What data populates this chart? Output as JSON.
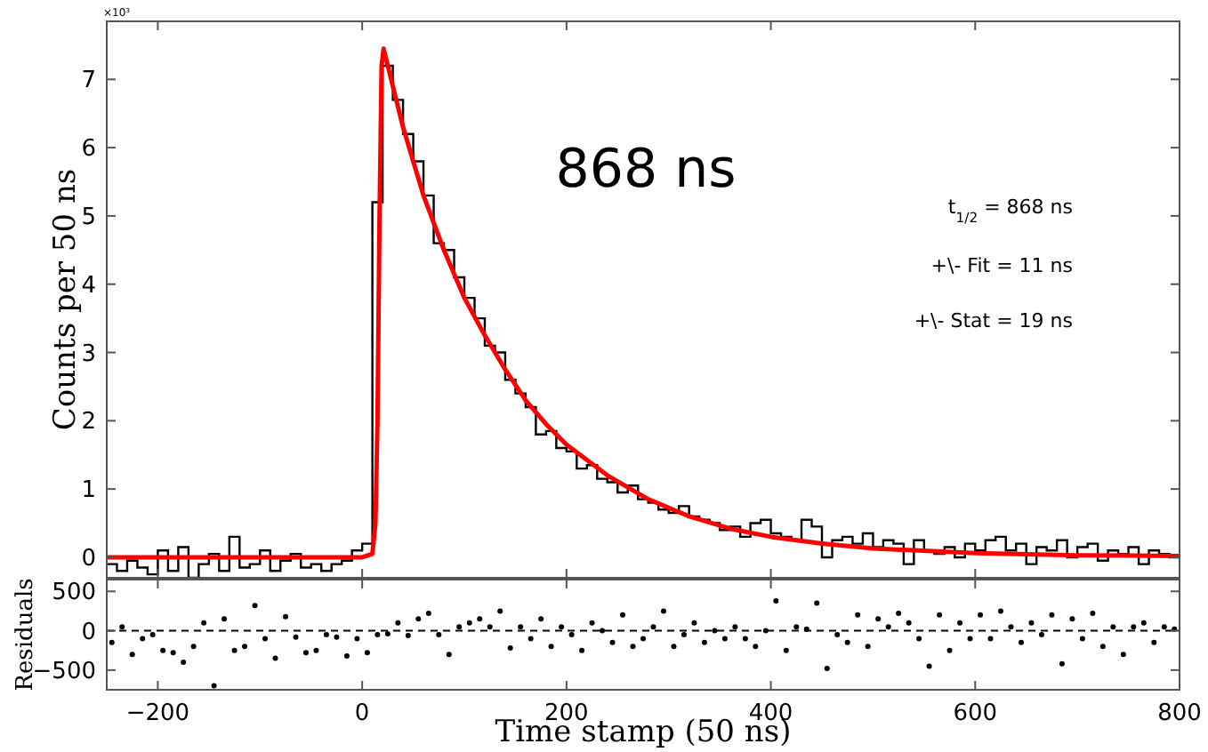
{
  "chart_data": [
    {
      "type": "histogram",
      "ylabel": "Counts per 50 ns",
      "xlim": [
        -250,
        800
      ],
      "xticks": [
        -200,
        0,
        200,
        400,
        600,
        800
      ],
      "ylim": [
        -0.3,
        7.85
      ],
      "yticks": [
        0,
        1,
        2,
        3,
        4,
        5,
        6,
        7
      ],
      "tick_labels": "y",
      "annotations": [
        "×10³",
        "868 ns",
        "t$_{1/2}$ = 868 ns",
        "+\\- Fit = 11 ns",
        "+\\- Stat = 19 ns"
      ],
      "bins": [
        -250,
        -240,
        -230,
        -220,
        -210,
        -200,
        -190,
        -180,
        -170,
        -160,
        -150,
        -140,
        -130,
        -120,
        -110,
        -100,
        -90,
        -80,
        -70,
        -60,
        -50,
        -40,
        -30,
        -20,
        -10,
        0,
        10,
        20,
        30,
        40,
        50,
        60,
        70,
        80,
        90,
        100,
        110,
        120,
        130,
        140,
        150,
        160,
        170,
        180,
        190,
        200,
        210,
        220,
        230,
        240,
        250,
        260,
        270,
        280,
        290,
        300,
        310,
        320,
        330,
        340,
        350,
        360,
        370,
        380,
        390,
        400,
        410,
        420,
        430,
        440,
        450,
        460,
        470,
        480,
        490,
        500,
        510,
        520,
        530,
        540,
        550,
        560,
        570,
        580,
        590,
        600,
        610,
        620,
        630,
        640,
        650,
        660,
        670,
        680,
        690,
        700,
        710,
        720,
        730,
        740,
        750,
        760,
        770,
        780,
        790,
        800
      ],
      "series": [
        {
          "color": "#000000",
          "values": [
            -0.1,
            -0.2,
            -0.05,
            -0.15,
            -0.25,
            0.1,
            -0.2,
            0.15,
            -0.3,
            -0.1,
            0.05,
            -0.2,
            0.3,
            -0.15,
            -0.1,
            0.1,
            -0.2,
            -0.05,
            0.05,
            -0.15,
            -0.1,
            -0.2,
            -0.1,
            -0.05,
            0.1,
            0.2,
            5.2,
            7.2,
            6.7,
            6.2,
            5.8,
            5.3,
            4.6,
            4.5,
            4.1,
            3.8,
            3.5,
            3.1,
            3.0,
            2.6,
            2.4,
            2.2,
            1.8,
            1.85,
            1.6,
            1.55,
            1.3,
            1.35,
            1.15,
            1.1,
            0.95,
            1.05,
            0.85,
            0.8,
            0.7,
            0.65,
            0.75,
            0.6,
            0.55,
            0.5,
            0.4,
            0.45,
            0.3,
            0.5,
            0.55,
            0.35,
            0.3,
            0.25,
            0.55,
            0.45,
            0.0,
            0.25,
            0.3,
            0.2,
            0.35,
            0.15,
            0.25,
            0.2,
            -0.1,
            0.25,
            0.1,
            0.05,
            0.15,
            0.0,
            0.2,
            0.1,
            0.25,
            0.3,
            0.1,
            0.2,
            -0.1,
            0.15,
            0.1,
            0.25,
            0.0,
            0.15,
            0.2,
            -0.05,
            0.1,
            0.05,
            0.15,
            -0.1,
            0.1,
            0.05,
            0.0
          ]
        },
        {
          "type": "line",
          "color": "#ff0000",
          "x": [
            -250,
            0,
            10,
            13,
            15,
            17,
            19,
            21,
            30,
            40,
            50,
            60,
            80,
            100,
            120,
            140,
            160,
            180,
            200,
            240,
            280,
            320,
            360,
            400,
            450,
            500,
            600,
            700,
            800
          ],
          "values": [
            0,
            0,
            0.05,
            0.5,
            2,
            5,
            7.2,
            7.45,
            6.9,
            6.3,
            5.8,
            5.3,
            4.5,
            3.8,
            3.25,
            2.75,
            2.3,
            1.95,
            1.65,
            1.2,
            0.85,
            0.6,
            0.42,
            0.3,
            0.2,
            0.13,
            0.06,
            0.03,
            0.02
          ]
        }
      ]
    },
    {
      "type": "scatter",
      "ylabel": "Residuals",
      "xlabel": "Time stamp (50 ns)",
      "xlim": [
        -250,
        800
      ],
      "xticks": [
        -200,
        0,
        200,
        400,
        600,
        800
      ],
      "ylim": [
        -750,
        650
      ],
      "yticks": [
        -500,
        0,
        500
      ],
      "marker": "circle",
      "ref_lines": [
        {
          "axis": "y",
          "value": 0,
          "line_style": "dashed",
          "color": "#000000"
        }
      ],
      "series": [
        {
          "color": "#000000",
          "x": [
            -245,
            -235,
            -225,
            -215,
            -205,
            -195,
            -185,
            -175,
            -165,
            -155,
            -145,
            -135,
            -125,
            -115,
            -105,
            -95,
            -85,
            -75,
            -65,
            -55,
            -45,
            -35,
            -25,
            -15,
            -5,
            5,
            15,
            25,
            35,
            45,
            55,
            65,
            75,
            85,
            95,
            105,
            115,
            125,
            135,
            145,
            155,
            165,
            175,
            185,
            195,
            205,
            215,
            225,
            235,
            245,
            255,
            265,
            275,
            285,
            295,
            305,
            315,
            325,
            335,
            345,
            355,
            365,
            375,
            385,
            395,
            405,
            415,
            425,
            435,
            445,
            455,
            465,
            475,
            485,
            495,
            505,
            515,
            525,
            535,
            545,
            555,
            565,
            575,
            585,
            595,
            605,
            615,
            625,
            635,
            645,
            655,
            665,
            675,
            685,
            695,
            705,
            715,
            725,
            735,
            745,
            755,
            765,
            775,
            785,
            795
          ],
          "values": [
            -150,
            50,
            -300,
            -100,
            -50,
            -250,
            -280,
            -400,
            -200,
            100,
            -700,
            150,
            -250,
            -200,
            320,
            -100,
            -350,
            180,
            -80,
            -280,
            -250,
            -50,
            -80,
            -320,
            -100,
            -280,
            -50,
            -40,
            100,
            -60,
            150,
            220,
            -50,
            -300,
            50,
            100,
            150,
            50,
            250,
            -220,
            50,
            -100,
            150,
            -200,
            50,
            -50,
            -250,
            100,
            0,
            -150,
            200,
            -200,
            -100,
            50,
            250,
            -200,
            -50,
            100,
            -150,
            0,
            -100,
            50,
            -100,
            -200,
            0,
            380,
            -250,
            50,
            20,
            350,
            -480,
            -50,
            -150,
            200,
            -200,
            150,
            50,
            220,
            100,
            -100,
            -450,
            200,
            -250,
            100,
            -100,
            200,
            -100,
            250,
            50,
            -150,
            100,
            -50,
            200,
            -420,
            150,
            -100,
            220,
            -200,
            50,
            -300,
            50,
            100,
            -150,
            50,
            20
          ]
        }
      ]
    }
  ]
}
